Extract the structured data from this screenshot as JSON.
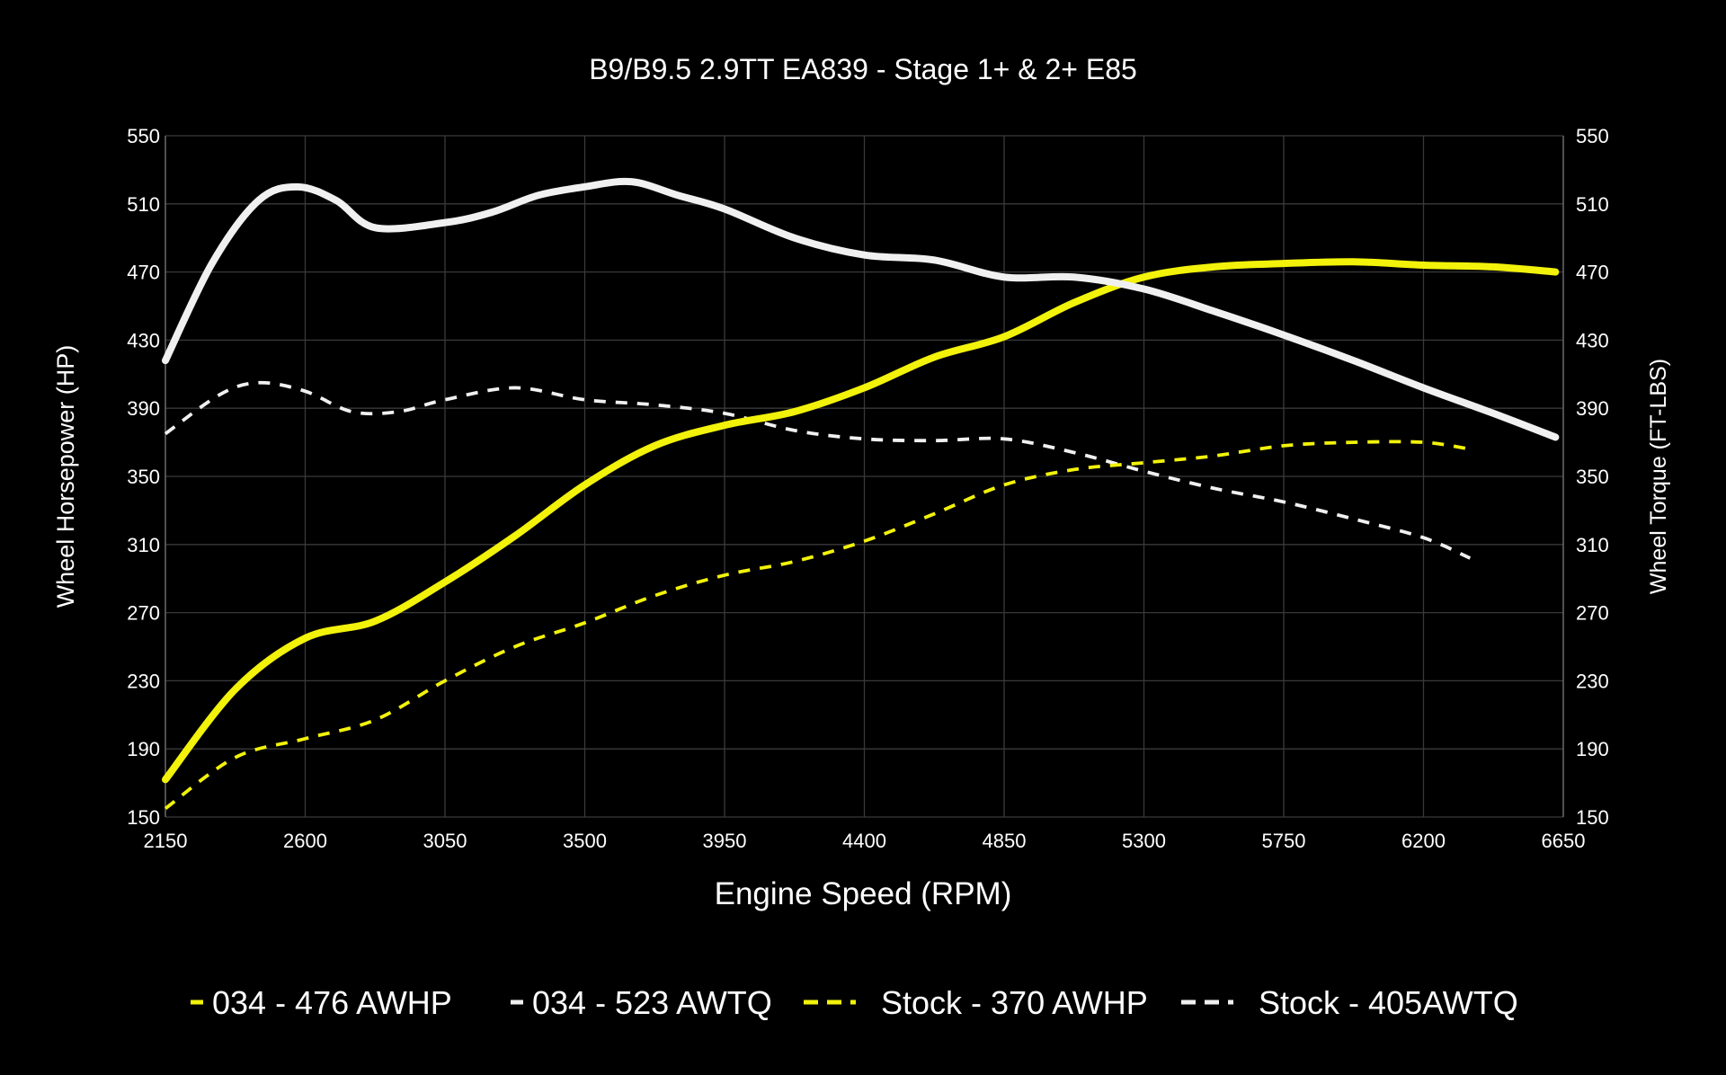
{
  "chart_data": {
    "type": "line",
    "title": "B9/B9.5 2.9TT EA839 - Stage 1+ & 2+ E85",
    "xlabel": "Engine Speed (RPM)",
    "ylabel": "Wheel Horsepower (HP)",
    "y2label": "Wheel Torque (FT-LBS)",
    "xlim": [
      2150,
      6650
    ],
    "ylim": [
      150,
      550
    ],
    "y2lim": [
      150,
      550
    ],
    "xticks": [
      2150,
      2600,
      3050,
      3500,
      3950,
      4400,
      4850,
      5300,
      5750,
      6200,
      6650
    ],
    "yticks": [
      150,
      190,
      230,
      270,
      310,
      350,
      390,
      430,
      470,
      510,
      550
    ],
    "grid": true,
    "legend_position": "bottom",
    "colors": {
      "background": "#000000",
      "yellow": "#f2f20a",
      "white": "#f0f0f0",
      "grid": "#3a3a3a"
    },
    "series": [
      {
        "name": "034 - 476 AWHP",
        "color": "#f2f20a",
        "style": "solid",
        "axis": "left",
        "x": [
          2150,
          2375,
          2600,
          2825,
          3050,
          3275,
          3500,
          3725,
          3950,
          4175,
          4400,
          4625,
          4850,
          5075,
          5300,
          5525,
          5750,
          5975,
          6200,
          6425,
          6625
        ],
        "y": [
          172,
          225,
          255,
          265,
          288,
          315,
          345,
          368,
          380,
          388,
          402,
          420,
          432,
          452,
          467,
          473,
          475,
          476,
          474,
          473,
          470
        ]
      },
      {
        "name": "034 - 523 AWTQ",
        "color": "#f0f0f0",
        "style": "solid",
        "axis": "right",
        "x": [
          2150,
          2300,
          2450,
          2575,
          2700,
          2825,
          3050,
          3200,
          3350,
          3500,
          3650,
          3800,
          3950,
          4175,
          4400,
          4625,
          4850,
          5075,
          5300,
          5525,
          5750,
          5975,
          6200,
          6425,
          6625
        ],
        "y": [
          418,
          475,
          512,
          520,
          512,
          496,
          499,
          505,
          515,
          520,
          523,
          515,
          507,
          490,
          480,
          477,
          467,
          467,
          460,
          447,
          433,
          418,
          402,
          387,
          373
        ]
      },
      {
        "name": "Stock - 370 AWHP",
        "color": "#f2f20a",
        "style": "dashed",
        "axis": "left",
        "x": [
          2150,
          2375,
          2600,
          2825,
          3050,
          3275,
          3500,
          3725,
          3950,
          4175,
          4400,
          4625,
          4850,
          5075,
          5300,
          5525,
          5750,
          5975,
          6200,
          6350
        ],
        "y": [
          155,
          185,
          196,
          207,
          230,
          250,
          264,
          280,
          292,
          300,
          312,
          328,
          345,
          354,
          358,
          362,
          368,
          370,
          370,
          366
        ]
      },
      {
        "name": "Stock - 405AWTQ",
        "color": "#f0f0f0",
        "style": "dashed",
        "axis": "right",
        "x": [
          2150,
          2325,
          2450,
          2600,
          2750,
          2900,
          3050,
          3275,
          3500,
          3725,
          3950,
          4175,
          4400,
          4625,
          4850,
          5075,
          5300,
          5525,
          5750,
          5975,
          6200,
          6350
        ],
        "y": [
          375,
          398,
          405,
          400,
          388,
          388,
          395,
          402,
          395,
          392,
          387,
          377,
          372,
          371,
          372,
          364,
          353,
          343,
          335,
          325,
          314,
          302
        ]
      }
    ]
  }
}
